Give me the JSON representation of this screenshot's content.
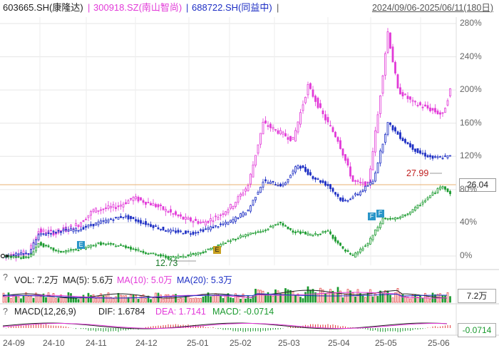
{
  "header": {
    "s1": "603665.SH(康隆达)",
    "sep1": "|",
    "s2": "300918.SZ(南山智尚)",
    "sep2": "|",
    "s3": "688722.SH(同益中)",
    "sep3": "|",
    "range": "2024/09/06-2025/06/11(180日)"
  },
  "colors": {
    "s1": "#1a9a2e",
    "s2": "#e23ad8",
    "s3": "#1d2ec4",
    "up": "#e23b3b",
    "down": "#1a9a2e"
  },
  "main_chart": {
    "y_ticks": [
      "280%",
      "240%",
      "200%",
      "160%",
      "120%",
      "80%",
      "40%",
      "0%"
    ],
    "last_price": "26.04",
    "high_label": "27.99",
    "low_label": "12.73",
    "markers": [
      "E",
      "E",
      "F",
      "F"
    ]
  },
  "volume": {
    "indicator": "?",
    "vol": "VOL: 7.2万",
    "ma5": "MA(5): 5.6万",
    "ma10": "MA(10): 5.0万",
    "ma20": "MA(20): 5.3万",
    "badge": "7.2万"
  },
  "macd": {
    "indicator": "?",
    "label": "MACD(12,26,9)",
    "dif": "DIF: 1.6784",
    "dea": "DEA: 1.7141",
    "macd": "MACD: -0.0714",
    "badge": "-0.0714"
  },
  "x_axis": [
    "24-09",
    "24-10",
    "24-11",
    "24-12",
    "25-01",
    "25-02",
    "25-03",
    "25-04",
    "25-05",
    "25-06"
  ]
}
